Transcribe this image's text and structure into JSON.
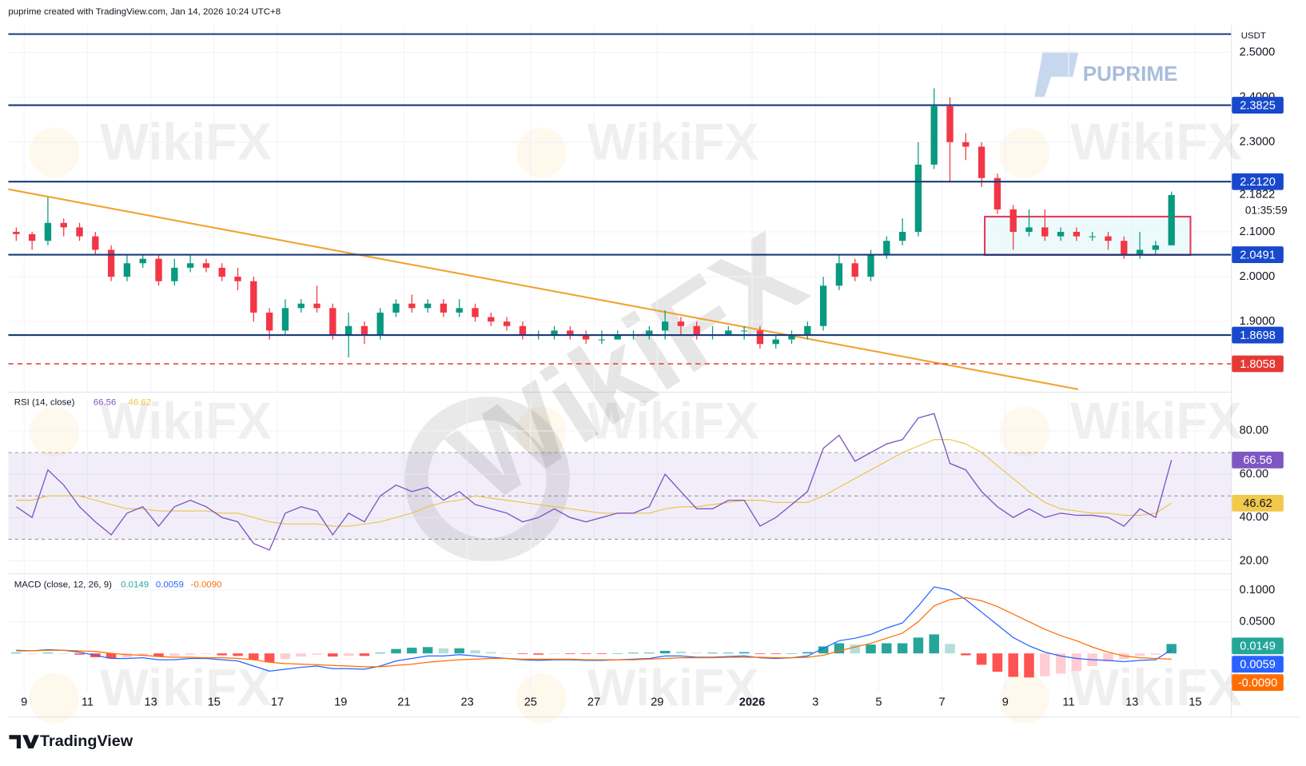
{
  "header": {
    "credit": "puprime created with TradingView.com, Jan 14, 2026 10:24 UTC+8",
    "brand": "PUPRIME",
    "watermark": "WikiFX",
    "footer_logo": "TradingView",
    "countdown": "01:35:59"
  },
  "chart_data": [
    {
      "type": "candlestick",
      "currency": "USDT",
      "categories": [
        null,
        "9",
        null,
        null,
        null,
        "11",
        null,
        null,
        null,
        "13",
        null,
        null,
        null,
        "15",
        null,
        null,
        null,
        "17",
        null,
        null,
        null,
        "19",
        null,
        null,
        null,
        "21",
        null,
        null,
        null,
        "23",
        null,
        null,
        null,
        "25",
        null,
        null,
        null,
        "27",
        null,
        null,
        null,
        "29",
        null,
        null,
        null,
        null,
        null,
        "2026",
        null,
        null,
        null,
        "3",
        null,
        null,
        null,
        "5",
        null,
        null,
        null,
        "7",
        null,
        null,
        null,
        "9",
        null,
        null,
        null,
        "11",
        null,
        null,
        null,
        "13",
        null,
        null,
        null,
        "15"
      ],
      "open": [
        2.1,
        2.095,
        2.08,
        2.12,
        2.11,
        2.09,
        2.06,
        2.0,
        2.03,
        2.04,
        1.99,
        2.02,
        2.03,
        2.02,
        2.0,
        1.99,
        1.92,
        1.88,
        1.93,
        1.94,
        1.93,
        1.87,
        1.89,
        1.87,
        1.92,
        1.94,
        1.93,
        1.94,
        1.92,
        1.93,
        1.91,
        1.9,
        1.89,
        1.87,
        1.87,
        1.88,
        1.87,
        1.86,
        1.86,
        1.87,
        1.87,
        1.88,
        1.9,
        1.89,
        1.87,
        1.87,
        1.88,
        1.88,
        1.85,
        1.86,
        1.87,
        1.89,
        1.98,
        2.03,
        2.0,
        2.05,
        2.08,
        2.1,
        2.25,
        2.38,
        2.3,
        2.29,
        2.22,
        2.15,
        2.1,
        2.11,
        2.09,
        2.1,
        2.09,
        2.09,
        2.08,
        2.05,
        2.06,
        2.07,
        null,
        null
      ],
      "high": [
        2.11,
        2.1,
        2.177,
        2.13,
        2.12,
        2.1,
        2.07,
        2.05,
        2.05,
        2.05,
        2.04,
        2.05,
        2.04,
        2.03,
        2.02,
        2.0,
        1.93,
        1.95,
        1.95,
        1.98,
        1.94,
        1.92,
        1.9,
        1.93,
        1.95,
        1.96,
        1.95,
        1.95,
        1.95,
        1.94,
        1.92,
        1.91,
        1.9,
        1.88,
        1.89,
        1.89,
        1.88,
        1.88,
        1.88,
        1.88,
        1.89,
        1.925,
        1.91,
        1.9,
        1.89,
        1.89,
        1.89,
        1.89,
        1.87,
        1.88,
        1.9,
        2.0,
        2.05,
        2.04,
        2.06,
        2.09,
        2.13,
        2.3,
        2.42,
        2.4,
        2.32,
        2.3,
        2.23,
        2.16,
        2.15,
        2.15,
        2.11,
        2.11,
        2.1,
        2.1,
        2.09,
        2.1,
        2.08,
        2.19,
        null,
        null
      ],
      "low": [
        2.08,
        2.06,
        2.07,
        2.09,
        2.08,
        2.05,
        1.99,
        1.99,
        2.02,
        1.98,
        1.98,
        2.01,
        2.01,
        1.99,
        1.97,
        1.9,
        1.86,
        1.87,
        1.92,
        1.92,
        1.86,
        1.82,
        1.85,
        1.86,
        1.91,
        1.92,
        1.92,
        1.91,
        1.91,
        1.9,
        1.89,
        1.88,
        1.86,
        1.86,
        1.86,
        1.86,
        1.85,
        1.85,
        1.86,
        1.86,
        1.86,
        1.86,
        1.87,
        1.86,
        1.86,
        1.87,
        1.86,
        1.84,
        1.84,
        1.85,
        1.86,
        1.88,
        1.97,
        1.99,
        1.99,
        2.04,
        2.07,
        2.09,
        2.24,
        2.21,
        2.26,
        2.2,
        2.14,
        2.06,
        2.09,
        2.08,
        2.08,
        2.08,
        2.08,
        2.06,
        2.04,
        2.04,
        2.05,
        2.07,
        null,
        null
      ],
      "close": [
        2.095,
        2.08,
        2.12,
        2.11,
        2.09,
        2.06,
        2.0,
        2.03,
        2.04,
        1.99,
        2.02,
        2.03,
        2.02,
        2.0,
        1.99,
        1.92,
        1.88,
        1.93,
        1.94,
        1.93,
        1.87,
        1.89,
        1.87,
        1.92,
        1.94,
        1.93,
        1.94,
        1.92,
        1.93,
        1.91,
        1.9,
        1.89,
        1.87,
        1.87,
        1.88,
        1.87,
        1.86,
        1.86,
        1.87,
        1.87,
        1.88,
        1.9,
        1.89,
        1.87,
        1.87,
        1.88,
        1.88,
        1.85,
        1.86,
        1.87,
        1.89,
        1.98,
        2.03,
        2.0,
        2.05,
        2.08,
        2.1,
        2.25,
        2.38,
        2.3,
        2.29,
        2.22,
        2.15,
        2.1,
        2.11,
        2.09,
        2.1,
        2.09,
        2.09,
        2.08,
        2.05,
        2.06,
        2.07,
        2.1822,
        null,
        null
      ],
      "up_color": "#089981",
      "down_color": "#f23645",
      "ylim": [
        1.7435,
        2.561
      ],
      "yticks": [
        {
          "value": 2.5,
          "label": "2.5000"
        },
        {
          "value": 2.4,
          "label": "2.4000"
        },
        {
          "value": 2.3,
          "label": "2.3000"
        },
        {
          "value": 2.1,
          "label": "2.1000"
        },
        {
          "value": 2,
          "label": "2.0000"
        },
        {
          "value": 1.9,
          "label": "1.9000"
        }
      ],
      "grid": true,
      "levels": [
        {
          "value": 2.541,
          "color": "#1a3a7a"
        },
        {
          "value": 2.3825,
          "label": "2.3825",
          "color": "#1a3a7a"
        },
        {
          "value": 2.212,
          "label": "2.2120",
          "color": "#1a3a7a"
        },
        {
          "value": 2.0491,
          "label": "2.0491",
          "color": "#1a3a7a"
        },
        {
          "value": 1.8698,
          "label": "1.8698",
          "color": "#1a3a7a"
        },
        {
          "value": 1.8058,
          "label": "1.8058",
          "color": "#e53935",
          "dashed": true
        }
      ],
      "trendline": {
        "x": [
          0,
          67.6
        ],
        "y": [
          2.195,
          1.749
        ],
        "color": "#f0a330"
      },
      "box": {
        "x": [
          61.7,
          74.7
        ],
        "y": [
          2.0484,
          2.134
        ],
        "color": "#e5395a"
      }
    },
    {
      "type": "line",
      "title": "RSI (14, close)",
      "series": [
        {
          "color": "#7e57c2",
          "values": [
            45,
            40,
            62,
            55,
            45,
            38,
            32,
            42,
            45,
            36,
            45,
            48,
            45,
            40,
            38,
            28,
            25,
            42,
            45,
            43,
            32,
            42,
            38,
            50,
            55,
            52,
            54,
            48,
            52,
            46,
            44,
            42,
            38,
            40,
            44,
            40,
            38,
            40,
            42,
            42,
            45,
            60,
            52,
            44,
            44,
            48,
            48,
            36,
            40,
            46,
            52,
            72,
            78,
            66,
            70,
            74,
            76,
            86,
            88,
            65,
            62,
            52,
            45,
            40,
            44,
            40,
            42,
            41,
            41,
            40,
            36,
            44,
            40,
            66.56,
            null,
            null
          ]
        },
        {
          "color": "#e8c547",
          "values": [
            48,
            48,
            50,
            50,
            50,
            48,
            46,
            44,
            44,
            43,
            43,
            43,
            43,
            42,
            42,
            40,
            38,
            37,
            37,
            37,
            36,
            36,
            37,
            38,
            40,
            42,
            45,
            47,
            48,
            50,
            49,
            48,
            47,
            46,
            45,
            44,
            43,
            42,
            42,
            42,
            42,
            44,
            45,
            45,
            46,
            47,
            48,
            48,
            47,
            47,
            47,
            50,
            54,
            58,
            62,
            66,
            70,
            73,
            76,
            76,
            74,
            70,
            64,
            58,
            52,
            47,
            44,
            43,
            42,
            42,
            41,
            41,
            42,
            46.62,
            null,
            null
          ]
        }
      ],
      "bands": [
        30,
        50,
        70
      ],
      "band_color": "#7e57c2",
      "ylim": [
        14.2,
        95
      ],
      "yticks": [
        {
          "value": 80,
          "label": "80.00"
        },
        {
          "value": 60,
          "label": "60.00"
        },
        {
          "value": 40,
          "label": "40.00"
        },
        {
          "value": 20,
          "label": "20.00"
        }
      ]
    },
    {
      "type": "macd",
      "title": "MACD (close, 12, 26, 9)",
      "series": [
        {
          "color": "#26a69a",
          "values": [
            0.001,
            0,
            0.001,
            0,
            -0.002,
            -0.006,
            -0.008,
            -0.006,
            -0.004,
            -0.005,
            -0.004,
            -0.002,
            -0.001,
            -0.003,
            -0.004,
            -0.01,
            -0.014,
            -0.009,
            -0.005,
            -0.002,
            -0.005,
            -0.004,
            -0.004,
            0.001,
            0.007,
            0.009,
            0.01,
            0.008,
            0.008,
            0.005,
            0.002,
            0,
            -0.001,
            -0.002,
            -0.001,
            -0.001,
            -0.001,
            -0.001,
            0,
            0.001,
            0.001,
            0.004,
            0.003,
            0.001,
            0.001,
            0.001,
            0.002,
            -0.001,
            -0.001,
            0,
            0.002,
            0.011,
            0.016,
            0.014,
            0.014,
            0.016,
            0.016,
            0.025,
            0.03,
            0.015,
            -0.003,
            -0.018,
            -0.029,
            -0.037,
            -0.038,
            -0.036,
            -0.032,
            -0.028,
            -0.02,
            -0.013,
            -0.009,
            -0.004,
            -0.002,
            0.0149,
            null,
            null
          ]
        },
        {
          "color": "#2962ff",
          "values": [
            0.005,
            0.004,
            0.006,
            0.005,
            0.002,
            -0.003,
            -0.008,
            -0.008,
            -0.007,
            -0.01,
            -0.01,
            -0.008,
            -0.008,
            -0.01,
            -0.012,
            -0.02,
            -0.028,
            -0.025,
            -0.022,
            -0.02,
            -0.024,
            -0.024,
            -0.025,
            -0.02,
            -0.012,
            -0.008,
            -0.004,
            -0.004,
            -0.002,
            -0.004,
            -0.006,
            -0.008,
            -0.01,
            -0.011,
            -0.01,
            -0.01,
            -0.011,
            -0.011,
            -0.01,
            -0.009,
            -0.008,
            -0.004,
            -0.004,
            -0.006,
            -0.006,
            -0.005,
            -0.004,
            -0.007,
            -0.008,
            -0.007,
            -0.004,
            0.008,
            0.02,
            0.024,
            0.03,
            0.04,
            0.048,
            0.075,
            0.105,
            0.1,
            0.085,
            0.065,
            0.045,
            0.025,
            0.012,
            0.002,
            -0.004,
            -0.008,
            -0.01,
            -0.011,
            -0.013,
            -0.011,
            -0.01,
            0.0059,
            null,
            null
          ]
        },
        {
          "color": "#ff6d00",
          "last_label": "-0.0090",
          "values": [
            0.004,
            0.004,
            0.005,
            0.005,
            0.004,
            0.003,
            0.0,
            -0.002,
            -0.003,
            -0.005,
            -0.006,
            -0.006,
            -0.007,
            -0.007,
            -0.008,
            -0.01,
            -0.014,
            -0.016,
            -0.017,
            -0.018,
            -0.019,
            -0.02,
            -0.021,
            -0.021,
            -0.019,
            -0.017,
            -0.014,
            -0.012,
            -0.01,
            -0.009,
            -0.008,
            -0.008,
            -0.009,
            -0.009,
            -0.009,
            -0.009,
            -0.01,
            -0.01,
            -0.01,
            -0.01,
            -0.009,
            -0.008,
            -0.007,
            -0.007,
            -0.007,
            -0.006,
            -0.006,
            -0.006,
            -0.007,
            -0.007,
            -0.006,
            -0.003,
            0.004,
            0.01,
            0.016,
            0.024,
            0.032,
            0.05,
            0.075,
            0.085,
            0.088,
            0.083,
            0.074,
            0.062,
            0.05,
            0.038,
            0.028,
            0.02,
            0.01,
            0.002,
            -0.004,
            -0.007,
            -0.008,
            -0.009,
            null,
            null
          ]
        }
      ],
      "ylim": [
        -0.0605,
        0.1237
      ],
      "yticks": [
        {
          "value": 0.1,
          "label": "0.1000"
        },
        {
          "value": 0.05,
          "label": "0.0500"
        }
      ]
    }
  ]
}
